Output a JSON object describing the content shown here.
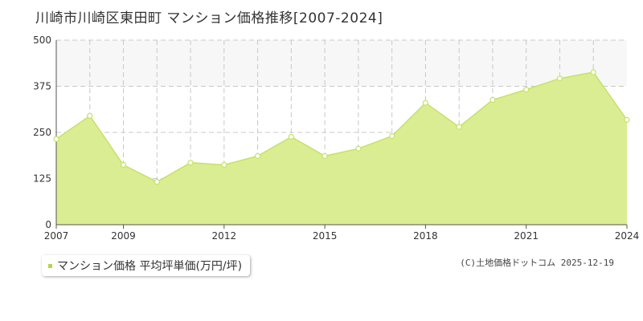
{
  "header": {
    "title": "川崎市川崎区東田町 マンション価格推移[2007-2024]"
  },
  "legend": {
    "label": "マンション価格 平均坪単価(万円/坪)"
  },
  "footer": {
    "copyright": "(C)土地価格ドットコム 2025-12-19"
  },
  "colors": {
    "fill": "#dbed92",
    "line": "#c4e363",
    "point_fill": "#ffffff",
    "band": "#f7f7f7",
    "grid": "#c8c8c8",
    "axis": "#555555",
    "legend_marker": "#b5d647"
  },
  "chart_data": {
    "type": "area",
    "title": "川崎市川崎区東田町 マンション価格推移[2007-2024]",
    "xlabel": "",
    "ylabel": "",
    "ylim": [
      0,
      500
    ],
    "xlim": [
      2007,
      2024
    ],
    "y_ticks": [
      0,
      125,
      250,
      375,
      500
    ],
    "x_tick_labels": [
      2007,
      2009,
      2012,
      2015,
      2018,
      2021,
      2024
    ],
    "x_gridlines": [
      2008,
      2009,
      2010,
      2011,
      2012,
      2013,
      2014,
      2015,
      2016,
      2017,
      2018,
      2019,
      2020,
      2021,
      2022,
      2023
    ],
    "grid": true,
    "legend_position": "bottom-left",
    "series": [
      {
        "name": "マンション価格 平均坪単価(万円/坪)",
        "x": [
          2007,
          2008,
          2009,
          2010,
          2011,
          2012,
          2013,
          2014,
          2015,
          2016,
          2017,
          2018,
          2019,
          2020,
          2021,
          2022,
          2023,
          2024
        ],
        "values": [
          232,
          295,
          162,
          116,
          168,
          162,
          186,
          238,
          186,
          206,
          240,
          330,
          265,
          338,
          366,
          396,
          413,
          284
        ]
      }
    ]
  }
}
